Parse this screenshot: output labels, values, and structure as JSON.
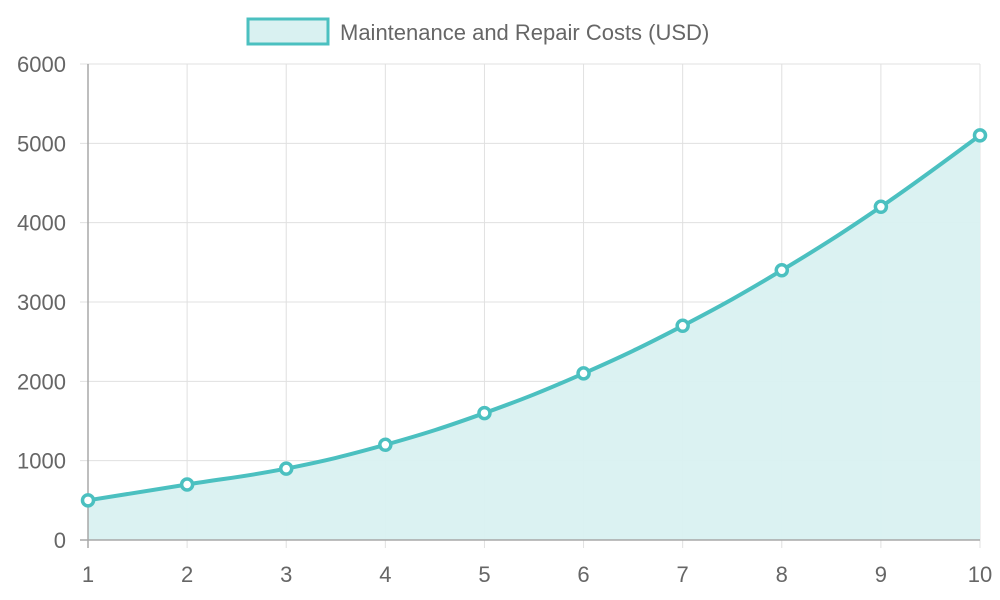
{
  "chart_data": {
    "type": "area",
    "categories": [
      "1",
      "2",
      "3",
      "4",
      "5",
      "6",
      "7",
      "8",
      "9",
      "10"
    ],
    "series": [
      {
        "name": "Maintenance and Repair Costs (USD)",
        "values": [
          500,
          700,
          900,
          1200,
          1600,
          2100,
          2700,
          3400,
          4200,
          5100
        ],
        "color": "#4bc0c0",
        "fill_color": "#d9f1f1"
      }
    ],
    "ylim": [
      0,
      6000
    ],
    "y_ticks": [
      0,
      1000,
      2000,
      3000,
      4000,
      5000,
      6000
    ],
    "grid": true,
    "legend_position": "top-center",
    "title": "",
    "xlabel": "",
    "ylabel": ""
  }
}
